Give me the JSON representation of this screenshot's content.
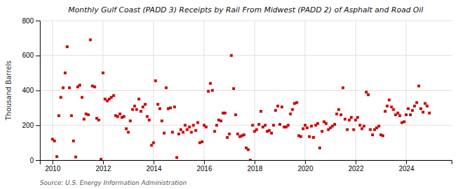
{
  "chart_data": {
    "type": "scatter",
    "title": "Monthly Gulf Coast (PADD 3) Receipts by Rail From Midwest (PADD 2) of Asphalt and Road Oil",
    "ylabel": "Thousand Barrels",
    "source": "Source: U.S. Energy Information Administration",
    "color": "#cc0000",
    "marker": "square",
    "grid": true,
    "xlim": [
      2009.5,
      2025.8
    ],
    "xticks": [
      2010,
      2012,
      2014,
      2016,
      2018,
      2020,
      2022,
      2024
    ],
    "ylim": [
      0,
      800
    ],
    "yticks": [
      0,
      200,
      400,
      600,
      800
    ],
    "x": [
      2010.0,
      2010.08,
      2010.17,
      2010.25,
      2010.33,
      2010.42,
      2010.5,
      2010.58,
      2010.67,
      2010.75,
      2010.83,
      2010.92,
      2011.0,
      2011.08,
      2011.17,
      2011.25,
      2011.33,
      2011.42,
      2011.5,
      2011.58,
      2011.67,
      2011.75,
      2011.83,
      2011.92,
      2012.0,
      2012.08,
      2012.17,
      2012.25,
      2012.33,
      2012.42,
      2012.5,
      2012.58,
      2012.67,
      2012.75,
      2012.83,
      2012.92,
      2013.0,
      2013.08,
      2013.17,
      2013.25,
      2013.33,
      2013.42,
      2013.5,
      2013.58,
      2013.67,
      2013.75,
      2013.83,
      2013.92,
      2014.0,
      2014.08,
      2014.17,
      2014.25,
      2014.33,
      2014.42,
      2014.5,
      2014.58,
      2014.67,
      2014.75,
      2014.83,
      2014.92,
      2015.0,
      2015.08,
      2015.17,
      2015.25,
      2015.33,
      2015.42,
      2015.5,
      2015.58,
      2015.67,
      2015.75,
      2015.83,
      2015.92,
      2016.0,
      2016.08,
      2016.17,
      2016.25,
      2016.33,
      2016.42,
      2016.5,
      2016.58,
      2016.67,
      2016.75,
      2016.83,
      2016.92,
      2017.0,
      2017.08,
      2017.17,
      2017.25,
      2017.33,
      2017.42,
      2017.5,
      2017.58,
      2017.67,
      2017.75,
      2017.83,
      2017.92,
      2018.0,
      2018.08,
      2018.17,
      2018.25,
      2018.33,
      2018.42,
      2018.5,
      2018.58,
      2018.67,
      2018.75,
      2018.83,
      2018.92,
      2019.0,
      2019.08,
      2019.17,
      2019.25,
      2019.33,
      2019.42,
      2019.5,
      2019.58,
      2019.67,
      2019.75,
      2019.83,
      2019.92,
      2020.0,
      2020.08,
      2020.17,
      2020.25,
      2020.33,
      2020.42,
      2020.5,
      2020.58,
      2020.67,
      2020.75,
      2020.83,
      2020.92,
      2021.0,
      2021.08,
      2021.17,
      2021.25,
      2021.33,
      2021.42,
      2021.5,
      2021.58,
      2021.67,
      2021.75,
      2021.83,
      2021.92,
      2022.0,
      2022.08,
      2022.17,
      2022.25,
      2022.33,
      2022.42,
      2022.5,
      2022.58,
      2022.67,
      2022.75,
      2022.83,
      2022.92,
      2023.0,
      2023.08,
      2023.17,
      2023.25,
      2023.33,
      2023.42,
      2023.5,
      2023.58,
      2023.67,
      2023.75,
      2023.83,
      2023.92,
      2024.0,
      2024.08,
      2024.17,
      2024.25,
      2024.33,
      2024.42,
      2024.5,
      2024.58,
      2024.67,
      2024.75,
      2024.83,
      2024.92
    ],
    "values": [
      120,
      110,
      20,
      255,
      360,
      415,
      500,
      650,
      415,
      255,
      110,
      18,
      420,
      430,
      360,
      235,
      265,
      260,
      690,
      425,
      420,
      240,
      230,
      5,
      500,
      350,
      340,
      350,
      360,
      370,
      255,
      250,
      265,
      245,
      250,
      180,
      160,
      225,
      290,
      310,
      290,
      350,
      280,
      305,
      320,
      250,
      230,
      85,
      100,
      455,
      320,
      295,
      225,
      155,
      415,
      295,
      300,
      160,
      305,
      15,
      150,
      175,
      160,
      200,
      175,
      190,
      160,
      200,
      170,
      215,
      100,
      105,
      200,
      190,
      395,
      440,
      400,
      165,
      200,
      230,
      225,
      270,
      270,
      130,
      150,
      600,
      410,
      260,
      150,
      135,
      140,
      145,
      70,
      60,
      0,
      200,
      165,
      175,
      205,
      280,
      190,
      200,
      165,
      170,
      155,
      200,
      285,
      310,
      205,
      305,
      190,
      190,
      200,
      265,
      290,
      325,
      330,
      140,
      135,
      180,
      200,
      185,
      135,
      195,
      130,
      200,
      210,
      70,
      165,
      220,
      210,
      175,
      185,
      195,
      205,
      265,
      290,
      260,
      415,
      235,
      175,
      230,
      245,
      175,
      230,
      245,
      200,
      180,
      195,
      390,
      375,
      175,
      145,
      175,
      185,
      195,
      145,
      140,
      280,
      310,
      345,
      305,
      290,
      260,
      270,
      255,
      215,
      220,
      260,
      295,
      260,
      285,
      310,
      330,
      425,
      295,
      275,
      325,
      310,
      270
    ]
  }
}
